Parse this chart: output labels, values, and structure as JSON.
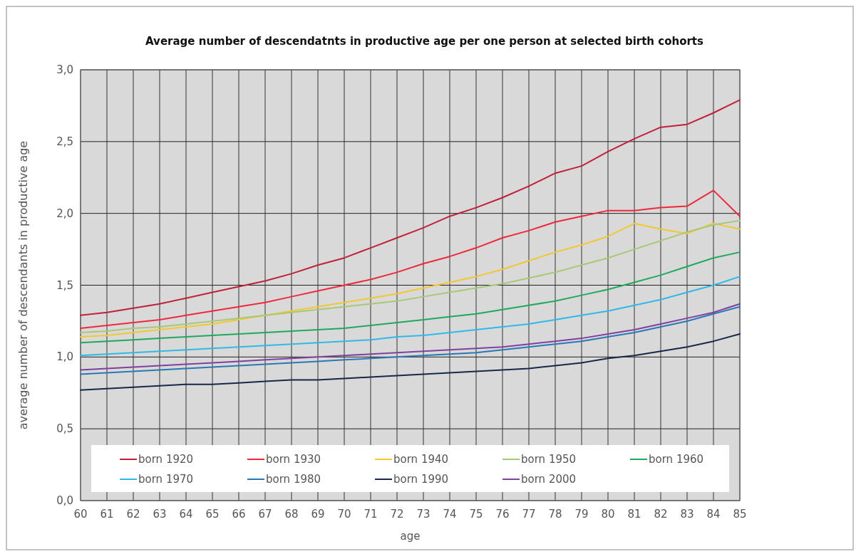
{
  "chart_data": {
    "type": "line",
    "title": "Average number of descendatnts  in productive age per one person at selected birth cohorts",
    "xlabel": "age",
    "ylabel": "average number of descendants in productive age",
    "x": [
      60,
      61,
      62,
      63,
      64,
      65,
      66,
      67,
      68,
      69,
      70,
      71,
      72,
      73,
      74,
      75,
      76,
      77,
      78,
      79,
      80,
      81,
      82,
      83,
      84,
      85
    ],
    "xlim": [
      60,
      85
    ],
    "xticks": [
      60,
      61,
      62,
      63,
      64,
      65,
      66,
      67,
      68,
      69,
      70,
      71,
      72,
      73,
      74,
      75,
      76,
      77,
      78,
      79,
      80,
      81,
      82,
      83,
      84,
      85
    ],
    "ylim": [
      0,
      3
    ],
    "yticks": [
      {
        "value": 0,
        "label": "0,0"
      },
      {
        "value": 0.5,
        "label": "0,5"
      },
      {
        "value": 1,
        "label": "1,0"
      },
      {
        "value": 1.5,
        "label": "1,5"
      },
      {
        "value": 2,
        "label": "2,0"
      },
      {
        "value": 2.5,
        "label": "2,5"
      },
      {
        "value": 3,
        "label": "3,0"
      }
    ],
    "grid": true,
    "legend": "bottom",
    "marker": "none",
    "line_style": "solid",
    "series": [
      {
        "name": "born 1920",
        "color": "#c0203a",
        "values": [
          1.29,
          1.31,
          1.34,
          1.37,
          1.41,
          1.45,
          1.49,
          1.53,
          1.58,
          1.64,
          1.69,
          1.76,
          1.83,
          1.9,
          1.98,
          2.04,
          2.11,
          2.19,
          2.28,
          2.33,
          2.43,
          2.52,
          2.6,
          2.62,
          2.7,
          2.79
        ]
      },
      {
        "name": "born 1930",
        "color": "#f0283c",
        "values": [
          1.2,
          1.22,
          1.24,
          1.26,
          1.29,
          1.32,
          1.35,
          1.38,
          1.42,
          1.46,
          1.5,
          1.54,
          1.59,
          1.65,
          1.7,
          1.76,
          1.83,
          1.88,
          1.94,
          1.98,
          2.02,
          2.02,
          2.04,
          2.05,
          2.16,
          1.98
        ]
      },
      {
        "name": "born 1940",
        "color": "#f2c832",
        "values": [
          1.14,
          1.15,
          1.17,
          1.19,
          1.21,
          1.23,
          1.26,
          1.29,
          1.32,
          1.35,
          1.38,
          1.41,
          1.44,
          1.48,
          1.52,
          1.56,
          1.61,
          1.67,
          1.73,
          1.78,
          1.84,
          1.93,
          1.89,
          1.86,
          1.93,
          1.89
        ]
      },
      {
        "name": "born 1950",
        "color": "#a8c878",
        "values": [
          1.17,
          1.18,
          1.2,
          1.21,
          1.23,
          1.25,
          1.27,
          1.29,
          1.31,
          1.33,
          1.35,
          1.37,
          1.39,
          1.42,
          1.45,
          1.48,
          1.51,
          1.55,
          1.59,
          1.64,
          1.69,
          1.75,
          1.81,
          1.87,
          1.92,
          1.95
        ]
      },
      {
        "name": "born 1960",
        "color": "#20a860",
        "values": [
          1.1,
          1.11,
          1.12,
          1.13,
          1.14,
          1.15,
          1.16,
          1.17,
          1.18,
          1.19,
          1.2,
          1.22,
          1.24,
          1.26,
          1.28,
          1.3,
          1.33,
          1.36,
          1.39,
          1.43,
          1.47,
          1.52,
          1.57,
          1.63,
          1.69,
          1.73
        ]
      },
      {
        "name": "born 1970",
        "color": "#30b8e8",
        "values": [
          1.01,
          1.02,
          1.03,
          1.04,
          1.05,
          1.06,
          1.07,
          1.08,
          1.09,
          1.1,
          1.11,
          1.12,
          1.14,
          1.15,
          1.17,
          1.19,
          1.21,
          1.23,
          1.26,
          1.29,
          1.32,
          1.36,
          1.4,
          1.45,
          1.5,
          1.56
        ]
      },
      {
        "name": "born 1980",
        "color": "#2878b8",
        "values": [
          0.88,
          0.89,
          0.9,
          0.91,
          0.92,
          0.93,
          0.94,
          0.95,
          0.96,
          0.97,
          0.98,
          0.99,
          1.0,
          1.01,
          1.02,
          1.03,
          1.05,
          1.07,
          1.09,
          1.11,
          1.14,
          1.17,
          1.21,
          1.25,
          1.3,
          1.35
        ]
      },
      {
        "name": "born 1990",
        "color": "#182848",
        "values": [
          0.77,
          0.78,
          0.79,
          0.8,
          0.81,
          0.81,
          0.82,
          0.83,
          0.84,
          0.84,
          0.85,
          0.86,
          0.87,
          0.88,
          0.89,
          0.9,
          0.91,
          0.92,
          0.94,
          0.96,
          0.99,
          1.01,
          1.04,
          1.07,
          1.11,
          1.16
        ]
      },
      {
        "name": "born 2000",
        "color": "#8040a0",
        "values": [
          0.91,
          0.92,
          0.93,
          0.94,
          0.95,
          0.96,
          0.97,
          0.98,
          0.99,
          1.0,
          1.01,
          1.02,
          1.03,
          1.04,
          1.05,
          1.06,
          1.07,
          1.09,
          1.11,
          1.13,
          1.16,
          1.19,
          1.23,
          1.27,
          1.31,
          1.37
        ]
      }
    ]
  }
}
